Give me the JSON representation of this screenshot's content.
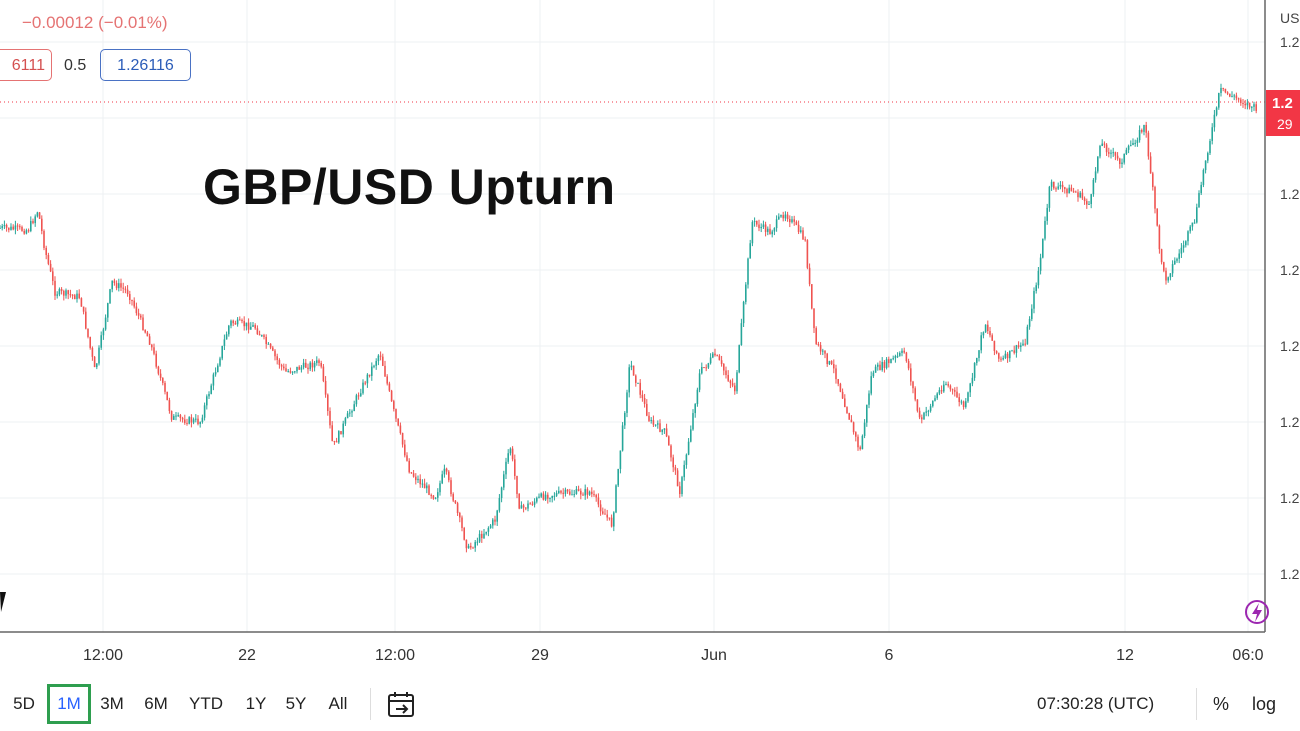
{
  "header": {
    "change": "−0.00012 (−0.01%)",
    "bid": "6111",
    "spread": "0.5",
    "ask": "1.26116"
  },
  "annotation": "GBP/USD Upturn",
  "price_axis": {
    "currency_label": "US",
    "ticks": [
      "1.2",
      "1.2",
      "1.2",
      "1.2",
      "1.2",
      "1.2",
      "1.2",
      "1.2"
    ],
    "last_price_tag": "1.2",
    "countdown_tag": "29"
  },
  "time_axis": {
    "labels": [
      "12:00",
      "22",
      "12:00",
      "29",
      "Jun",
      "6",
      "12",
      "06:0"
    ]
  },
  "colors": {
    "up": "#26a69a",
    "down": "#ef5350",
    "last_price": "#f23645",
    "active_outline": "#2e9e4f"
  },
  "toolbar": {
    "ranges": [
      "5D",
      "1M",
      "3M",
      "6M",
      "YTD",
      "1Y",
      "5Y",
      "All"
    ],
    "active_range": "1M",
    "clock": "07:30:28 (UTC)",
    "percent_label": "%",
    "log_label": "log"
  }
}
